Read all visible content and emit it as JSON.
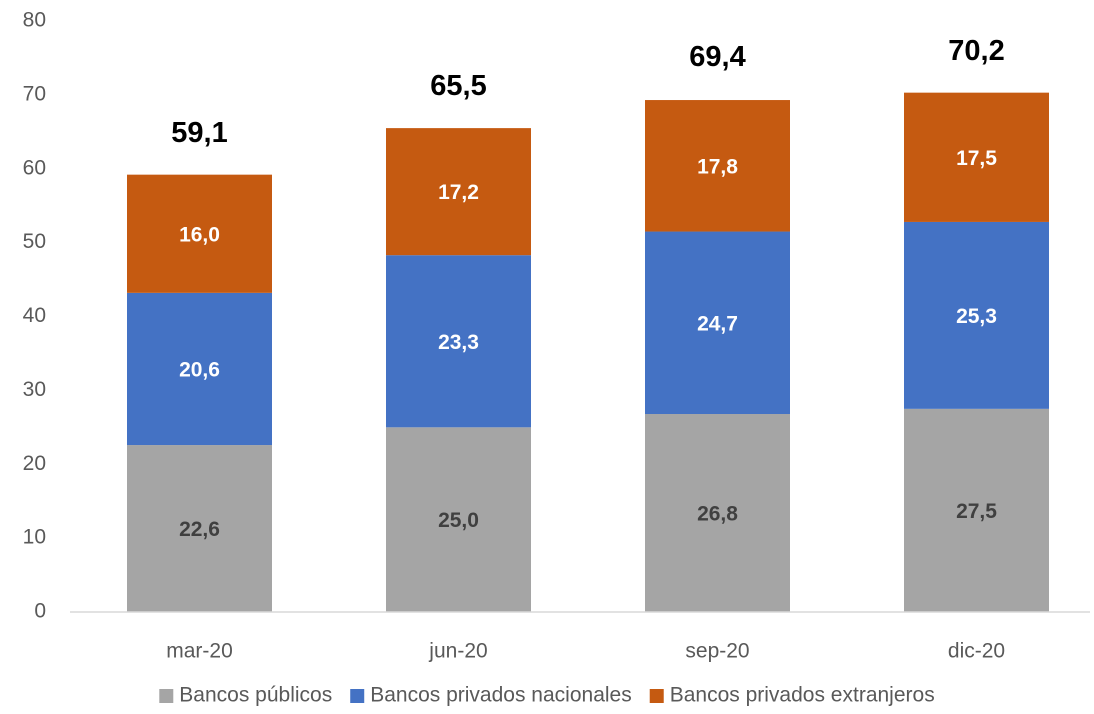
{
  "chart_data": {
    "type": "stacked_bar",
    "categories": [
      "mar-20",
      "jun-20",
      "sep-20",
      "dic-20"
    ],
    "series": [
      {
        "name": "Bancos públicos",
        "color": "#a5a5a5",
        "label_color": "#404040",
        "values": [
          22.6,
          25.0,
          26.8,
          27.5
        ],
        "value_labels": [
          "22,6",
          "25,0",
          "26,8",
          "27,5"
        ]
      },
      {
        "name": "Bancos privados nacionales",
        "color": "#4472c4",
        "label_color": "#ffffff",
        "values": [
          20.6,
          23.3,
          24.7,
          25.3
        ],
        "value_labels": [
          "20,6",
          "23,3",
          "24,7",
          "25,3"
        ]
      },
      {
        "name": "Bancos privados extranjeros",
        "color": "#c55a11",
        "label_color": "#ffffff",
        "values": [
          16.0,
          17.2,
          17.8,
          17.5
        ],
        "value_labels": [
          "16,0",
          "17,2",
          "17,8",
          "17,5"
        ]
      }
    ],
    "totals": [
      59.1,
      65.5,
      69.4,
      70.2
    ],
    "total_labels": [
      "59,1",
      "65,5",
      "69,4",
      "70,2"
    ],
    "ylim": [
      0,
      80
    ],
    "yticks": [
      0,
      10,
      20,
      30,
      40,
      50,
      60,
      70,
      80
    ],
    "grid": false,
    "legend": "bottom"
  }
}
